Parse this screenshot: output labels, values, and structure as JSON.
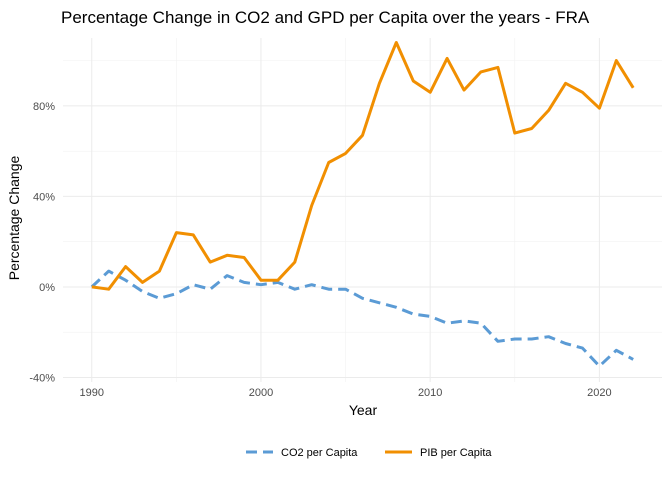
{
  "chart_data": {
    "type": "line",
    "title": "Percentage Change in CO2 and GPD per Capita over the years - FRA",
    "xlabel": "Year",
    "ylabel": "Percentage Change",
    "xlim": [
      1988.3,
      2023.7
    ],
    "ylim": [
      -42,
      110
    ],
    "x_ticks": [
      1990,
      2000,
      2010,
      2020
    ],
    "y_ticks": [
      -40,
      0,
      40,
      80
    ],
    "y_tick_labels": [
      "-40%",
      "0%",
      "40%",
      "80%"
    ],
    "grid": true,
    "legend_position": "bottom",
    "x": [
      1990,
      1991,
      1992,
      1993,
      1994,
      1995,
      1996,
      1997,
      1998,
      1999,
      2000,
      2001,
      2002,
      2003,
      2004,
      2005,
      2006,
      2007,
      2008,
      2009,
      2010,
      2011,
      2012,
      2013,
      2014,
      2015,
      2016,
      2017,
      2018,
      2019,
      2020,
      2021,
      2022
    ],
    "series": [
      {
        "name": "CO2 per Capita",
        "color": "#5b9bd5",
        "dash": "dashed",
        "values": [
          0,
          7,
          3,
          -2,
          -5,
          -3,
          1,
          -1,
          5,
          2,
          1,
          2,
          -1,
          1,
          -1,
          -1,
          -5,
          -7,
          -9,
          -12,
          -13,
          -16,
          -15,
          -16,
          -24,
          -23,
          -23,
          -22,
          -25,
          -27,
          -35,
          -28,
          -32
        ]
      },
      {
        "name": "PIB per Capita",
        "color": "#f18f01",
        "dash": "solid",
        "values": [
          0,
          -1,
          9,
          2,
          7,
          24,
          23,
          11,
          14,
          13,
          3,
          3,
          11,
          36,
          55,
          59,
          67,
          90,
          108,
          91,
          86,
          101,
          87,
          95,
          97,
          68,
          70,
          78,
          90,
          86,
          79,
          100,
          88
        ]
      }
    ]
  }
}
